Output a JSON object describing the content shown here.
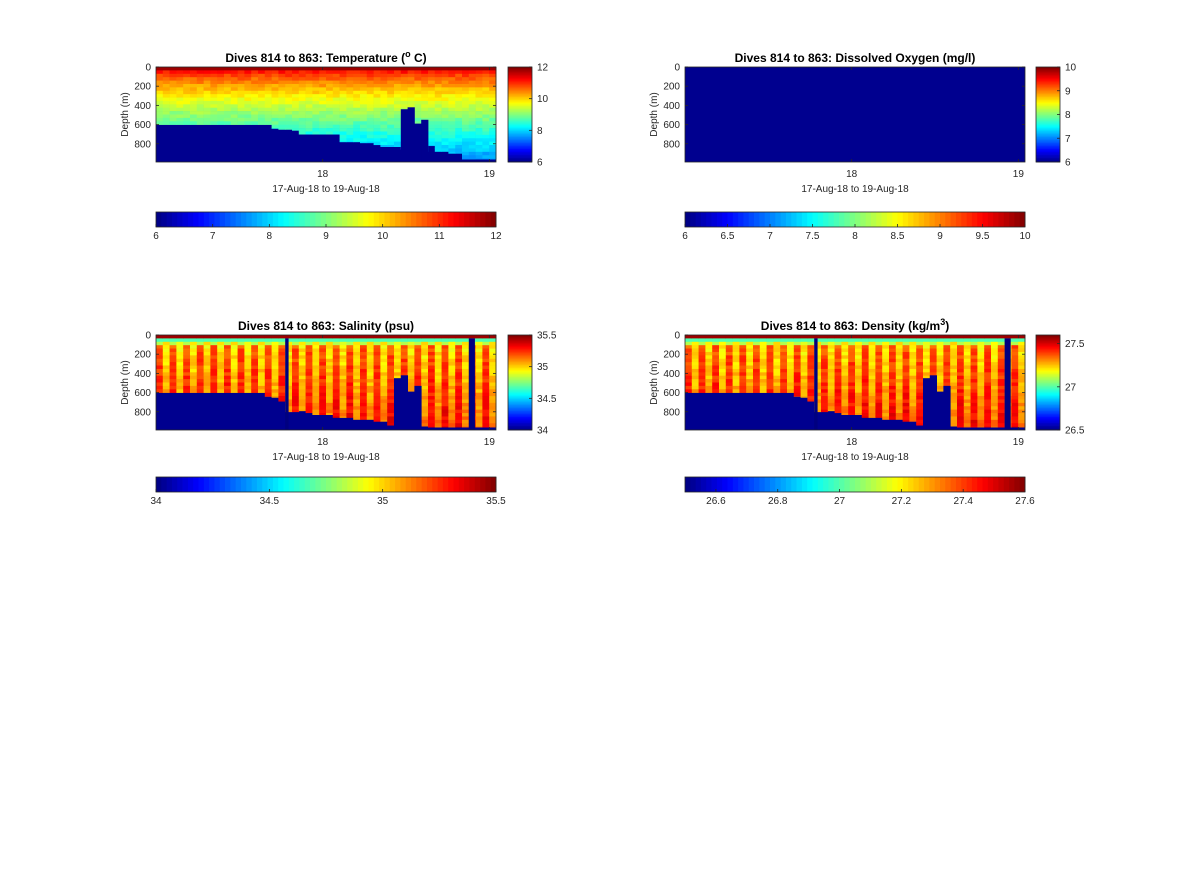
{
  "chart_data": [
    {
      "type": "heatmap",
      "title": "Dives 814 to 863: Temperature (",
      "title_sup": "o",
      "title_end": " C)",
      "xlabel": "17-Aug-18 to 19-Aug-18",
      "ylabel": "Depth (m)",
      "ylim": [
        0,
        990
      ],
      "y_reversed": true,
      "xlim": [
        17.0,
        19.04
      ],
      "x_ticks": [
        18,
        19
      ],
      "x_tick_labels": [
        "18",
        "19"
      ],
      "y_ticks": [
        0,
        200,
        400,
        600,
        800
      ],
      "y_tick_labels": [
        "0",
        "200",
        "400",
        "600",
        "800"
      ],
      "clim": [
        6,
        12
      ],
      "colorbar_ticks": [
        "6",
        "8",
        "10",
        "12"
      ],
      "horizontal_colorbar_ticks": [
        "6",
        "7",
        "8",
        "9",
        "10",
        "11",
        "12"
      ],
      "colormap": "jet",
      "background_color": "#00008f",
      "profiles": 50,
      "surface_value": 11.5,
      "deep_value": 7.5,
      "alternating_pattern": false,
      "outlier_columns": [],
      "bottom_depth_m": [
        600,
        600,
        600,
        600,
        600,
        600,
        600,
        600,
        600,
        600,
        600,
        600,
        600,
        600,
        600,
        600,
        600,
        640,
        650,
        650,
        660,
        700,
        700,
        700,
        700,
        700,
        700,
        780,
        780,
        780,
        790,
        790,
        810,
        830,
        830,
        830,
        860,
        860,
        860,
        880,
        820,
        880,
        880,
        900,
        900,
        960,
        960,
        960,
        960,
        960
      ],
      "bottom_overlay": [
        {
          "from": 36,
          "to": 37,
          "depth_m": 440
        },
        {
          "from": 37,
          "to": 38,
          "depth_m": 420
        },
        {
          "from": 38,
          "to": 39,
          "depth_m": 590
        },
        {
          "from": 39,
          "to": 40,
          "depth_m": 550
        }
      ]
    },
    {
      "type": "heatmap",
      "title": "Dives 814 to 863: Dissolved Oxygen (mg/l)",
      "title_sup": "",
      "title_end": "",
      "xlabel": "17-Aug-18 to 19-Aug-18",
      "ylabel": "Depth (m)",
      "ylim": [
        0,
        990
      ],
      "y_reversed": true,
      "xlim": [
        17.0,
        19.04
      ],
      "x_ticks": [
        18,
        19
      ],
      "x_tick_labels": [
        "18",
        "19"
      ],
      "y_ticks": [
        0,
        200,
        400,
        600,
        800
      ],
      "y_tick_labels": [
        "0",
        "200",
        "400",
        "600",
        "800"
      ],
      "clim": [
        6,
        10
      ],
      "colorbar_ticks": [
        "6",
        "7",
        "8",
        "9",
        "10"
      ],
      "horizontal_colorbar_ticks": [
        "6",
        "6.5",
        "7",
        "7.5",
        "8",
        "8.5",
        "9",
        "9.5",
        "10"
      ],
      "colormap": "jet",
      "background_color": "#00008f",
      "profiles": 0,
      "bottom_depth_m": [],
      "bottom_overlay": []
    },
    {
      "type": "heatmap",
      "title": "Dives 814 to 863: Salinity (psu)",
      "title_sup": "",
      "title_end": "",
      "xlabel": "17-Aug-18 to 19-Aug-18",
      "ylabel": "Depth (m)",
      "ylim": [
        0,
        990
      ],
      "y_reversed": true,
      "xlim": [
        17.0,
        19.04
      ],
      "x_ticks": [
        18,
        19
      ],
      "x_tick_labels": [
        "18",
        "19"
      ],
      "y_ticks": [
        0,
        200,
        400,
        600,
        800
      ],
      "y_tick_labels": [
        "0",
        "200",
        "400",
        "600",
        "800"
      ],
      "clim": [
        34,
        35.5
      ],
      "colorbar_ticks": [
        "34",
        "34.5",
        "35",
        "35.5"
      ],
      "horizontal_colorbar_ticks": [
        "34",
        "34.5",
        "35",
        "35.5"
      ],
      "colormap": "jet",
      "background_color": "#00008f",
      "profiles": 50,
      "surface_value": 35.1,
      "deep_value": 35.25,
      "alternating_pattern": true,
      "outlier_columns": [
        {
          "index": 19,
          "width_fraction": 0.5,
          "value": 34.0
        },
        {
          "index": 46,
          "width_fraction": 0.9,
          "value": 34.0
        }
      ],
      "bottom_depth_m": [
        600,
        600,
        600,
        600,
        600,
        600,
        600,
        600,
        600,
        600,
        600,
        600,
        600,
        600,
        600,
        600,
        640,
        650,
        690,
        800,
        800,
        790,
        810,
        830,
        830,
        830,
        860,
        860,
        860,
        880,
        880,
        880,
        900,
        900,
        940,
        940,
        950,
        950,
        950,
        950,
        960,
        960,
        960,
        960,
        960,
        960,
        960,
        960,
        960,
        960
      ],
      "bottom_overlay": [
        {
          "from": 35,
          "to": 36,
          "depth_m": 450
        },
        {
          "from": 36,
          "to": 37,
          "depth_m": 420
        },
        {
          "from": 37,
          "to": 38,
          "depth_m": 590
        },
        {
          "from": 38,
          "to": 39,
          "depth_m": 530
        }
      ]
    },
    {
      "type": "heatmap",
      "title": "Dives 814 to 863: Density (kg/m",
      "title_sup": "3",
      "title_end": ")",
      "xlabel": "17-Aug-18 to 19-Aug-18",
      "ylabel": "Depth (m)",
      "ylim": [
        0,
        990
      ],
      "y_reversed": true,
      "xlim": [
        17.0,
        19.04
      ],
      "x_ticks": [
        18,
        19
      ],
      "x_tick_labels": [
        "18",
        "19"
      ],
      "y_ticks": [
        0,
        200,
        400,
        600,
        800
      ],
      "y_tick_labels": [
        "0",
        "200",
        "400",
        "600",
        "800"
      ],
      "clim": [
        26.5,
        27.6
      ],
      "colorbar_ticks": [
        "26.5",
        "27",
        "27.5"
      ],
      "horizontal_colorbar_ticks": [
        "26.6",
        "26.8",
        "27",
        "27.2",
        "27.4",
        "27.6"
      ],
      "colormap": "jet",
      "background_color": "#00008f",
      "profiles": 50,
      "surface_value": 26.9,
      "deep_value": 27.45,
      "alternating_pattern": true,
      "outlier_columns": [
        {
          "index": 19,
          "width_fraction": 0.5,
          "value": 26.5
        },
        {
          "index": 47,
          "width_fraction": 0.9,
          "value": 26.5
        }
      ],
      "bottom_depth_m": [
        600,
        600,
        600,
        600,
        600,
        600,
        600,
        600,
        600,
        600,
        600,
        600,
        600,
        600,
        600,
        600,
        640,
        650,
        690,
        800,
        800,
        790,
        810,
        830,
        830,
        830,
        860,
        860,
        860,
        880,
        880,
        880,
        900,
        900,
        940,
        940,
        950,
        950,
        950,
        950,
        960,
        960,
        960,
        960,
        960,
        960,
        960,
        960,
        960,
        960
      ],
      "bottom_overlay": [
        {
          "from": 35,
          "to": 36,
          "depth_m": 450
        },
        {
          "from": 36,
          "to": 37,
          "depth_m": 420
        },
        {
          "from": 37,
          "to": 38,
          "depth_m": 590
        },
        {
          "from": 38,
          "to": 39,
          "depth_m": 530
        }
      ]
    }
  ]
}
